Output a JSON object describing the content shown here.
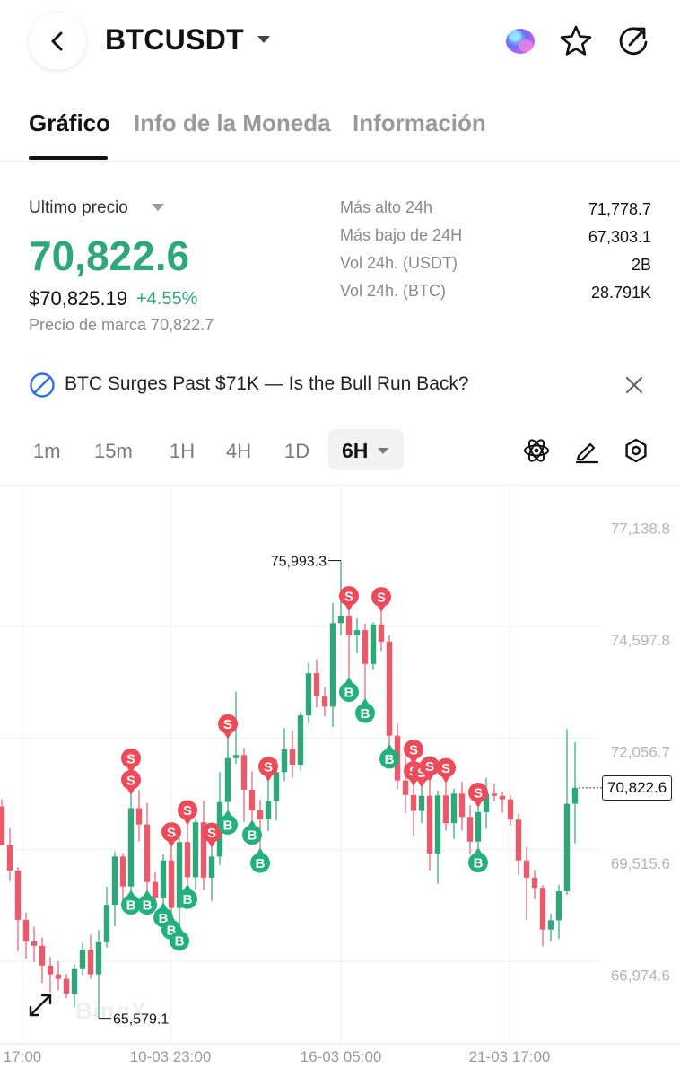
{
  "header": {
    "symbol": "BTCUSDT",
    "icons": [
      "back-chevron-icon",
      "caret-down-icon",
      "ai-assistant-orb-icon",
      "star-icon",
      "share-rotate-icon"
    ]
  },
  "tabs": [
    {
      "label": "Gráfico",
      "active": true
    },
    {
      "label": "Info de la Moneda",
      "active": false
    },
    {
      "label": "Información",
      "active": false
    }
  ],
  "ticker": {
    "last_price_label": "Ultimo precio",
    "last_price": "70,822.6",
    "usd_price": "$70,825.19",
    "change_pct": "+4.55%",
    "mark_price": "Precio de marca 70,822.7",
    "stats": [
      {
        "label": "Más alto 24h",
        "value": "71,778.7"
      },
      {
        "label": "Más bajo de 24H",
        "value": "67,303.1"
      },
      {
        "label": "Vol 24h. (USDT)",
        "value": "2B"
      },
      {
        "label": "Vol 24h. (BTC)",
        "value": "28.791K"
      }
    ]
  },
  "news": {
    "headline": "BTC Surges Past $71K — Is the Bull Run Back?"
  },
  "intervals": {
    "options": [
      "1m",
      "15m",
      "1H",
      "4H",
      "1D"
    ],
    "selected": "6H"
  },
  "colors": {
    "up": "#2ea77a",
    "down": "#ea5a6b",
    "grid": "#eeeeee"
  },
  "chart_data": {
    "type": "candlestick",
    "y_axis_labels": [
      "77,138.8",
      "74,597.8",
      "72,056.7",
      "69,515.6",
      "66,974.6"
    ],
    "ylim": [
      65000,
      77700
    ],
    "x_axis_labels": [
      "17:00",
      "10-03 23:00",
      "16-03 05:00",
      "21-03 17:00"
    ],
    "current_price_label": "70,822.6",
    "high_annotation": "75,993.3",
    "low_annotation": "65,579.1",
    "watermark": "BingX",
    "candles": [
      [
        70400,
        70560,
        69600,
        69520
      ],
      [
        69520,
        69900,
        68700,
        68940
      ],
      [
        68940,
        69020,
        67100,
        67820
      ],
      [
        67820,
        67980,
        66940,
        67330
      ],
      [
        67330,
        67660,
        66860,
        67230
      ],
      [
        67230,
        67420,
        66380,
        66780
      ],
      [
        66780,
        66980,
        66160,
        66580
      ],
      [
        66580,
        66880,
        66220,
        66480
      ],
      [
        66480,
        66590,
        66030,
        66140
      ],
      [
        66140,
        66810,
        65840,
        66700
      ],
      [
        66700,
        67300,
        66560,
        67140
      ],
      [
        67140,
        67480,
        66480,
        66580
      ],
      [
        66580,
        67590,
        65579.1,
        67310
      ],
      [
        67310,
        68570,
        67190,
        68160
      ],
      [
        68160,
        69370,
        67670,
        69260
      ],
      [
        69260,
        69340,
        68210,
        68580
      ],
      [
        68580,
        70680,
        68490,
        70360
      ],
      [
        70360,
        70770,
        69600,
        69990
      ],
      [
        69990,
        70480,
        68490,
        68680
      ],
      [
        68680,
        68900,
        68230,
        68330
      ],
      [
        68330,
        69310,
        68200,
        69170
      ],
      [
        69170,
        69490,
        67920,
        68090
      ],
      [
        68090,
        69680,
        67670,
        69590
      ],
      [
        69590,
        69990,
        68620,
        68790
      ],
      [
        68790,
        70120,
        68500,
        70040
      ],
      [
        70040,
        70530,
        68490,
        68780
      ],
      [
        68780,
        69480,
        68250,
        69260
      ],
      [
        69260,
        71180,
        69070,
        70500
      ],
      [
        70500,
        71950,
        70310,
        71500
      ],
      [
        71500,
        73010,
        71370,
        71570
      ],
      [
        71570,
        71730,
        70050,
        70780
      ],
      [
        70780,
        71200,
        70080,
        70310
      ],
      [
        70310,
        70550,
        69440,
        70110
      ],
      [
        70110,
        70980,
        69840,
        70520
      ],
      [
        70520,
        71480,
        70080,
        71180
      ],
      [
        71180,
        72180,
        70980,
        71700
      ],
      [
        71700,
        72120,
        71050,
        71350
      ],
      [
        71350,
        72550,
        71220,
        72470
      ],
      [
        72470,
        73670,
        72290,
        73430
      ],
      [
        73430,
        73750,
        72650,
        72900
      ],
      [
        72900,
        73110,
        72450,
        72670
      ],
      [
        72670,
        75030,
        72210,
        74570
      ],
      [
        74570,
        75993.3,
        74290,
        74740
      ],
      [
        74740,
        74860,
        73330,
        74290
      ],
      [
        74290,
        74680,
        73880,
        74410
      ],
      [
        74410,
        74560,
        72850,
        73640
      ],
      [
        73640,
        74590,
        73510,
        74540
      ],
      [
        74540,
        74840,
        73930,
        74150
      ],
      [
        74150,
        74290,
        71810,
        72010
      ],
      [
        72010,
        72280,
        70790,
        70990
      ],
      [
        70990,
        71510,
        70250,
        70660
      ],
      [
        70660,
        70880,
        69730,
        70300
      ],
      [
        70300,
        70850,
        70020,
        70640
      ],
      [
        70640,
        70990,
        68940,
        69330
      ],
      [
        69330,
        70760,
        68640,
        70650
      ],
      [
        70650,
        70950,
        69850,
        70020
      ],
      [
        70020,
        70800,
        69660,
        70690
      ],
      [
        70690,
        70960,
        69860,
        70160
      ],
      [
        70160,
        70430,
        69300,
        69600
      ],
      [
        69600,
        70390,
        69450,
        70270
      ],
      [
        70270,
        71050,
        69890,
        70690
      ],
      [
        70690,
        70920,
        70520,
        70640
      ],
      [
        70640,
        70720,
        70260,
        70560
      ],
      [
        70560,
        70660,
        69960,
        70100
      ],
      [
        70100,
        70230,
        68840,
        69170
      ],
      [
        69170,
        69480,
        67820,
        68780
      ],
      [
        68780,
        68960,
        68290,
        68550
      ],
      [
        68550,
        68610,
        67220,
        67600
      ],
      [
        67600,
        67960,
        67340,
        67810
      ],
      [
        67810,
        68620,
        67390,
        68470
      ],
      [
        68470,
        72160,
        68390,
        70460
      ],
      [
        70460,
        71860,
        69560,
        70822.6
      ]
    ],
    "trade_markers": [
      {
        "type": "S",
        "candle": 16
      },
      {
        "type": "S",
        "candle": 16
      },
      {
        "type": "S",
        "candle": 21
      },
      {
        "type": "S",
        "candle": 23
      },
      {
        "type": "S",
        "candle": 26
      },
      {
        "type": "S",
        "candle": 28
      },
      {
        "type": "S",
        "candle": 33
      },
      {
        "type": "S",
        "candle": 43
      },
      {
        "type": "S",
        "candle": 47
      },
      {
        "type": "S",
        "candle": 51
      },
      {
        "type": "S",
        "candle": 51
      },
      {
        "type": "S",
        "candle": 52
      },
      {
        "type": "S",
        "candle": 53
      },
      {
        "type": "S",
        "candle": 55
      },
      {
        "type": "S",
        "candle": 59
      },
      {
        "type": "B",
        "candle": 16
      },
      {
        "type": "B",
        "candle": 18
      },
      {
        "type": "B",
        "candle": 20
      },
      {
        "type": "B",
        "candle": 21
      },
      {
        "type": "B",
        "candle": 22
      },
      {
        "type": "B",
        "candle": 23
      },
      {
        "type": "B",
        "candle": 28
      },
      {
        "type": "B",
        "candle": 31
      },
      {
        "type": "B",
        "candle": 32
      },
      {
        "type": "B",
        "candle": 43
      },
      {
        "type": "B",
        "candle": 45
      },
      {
        "type": "B",
        "candle": 48
      },
      {
        "type": "B",
        "candle": 59
      }
    ]
  }
}
